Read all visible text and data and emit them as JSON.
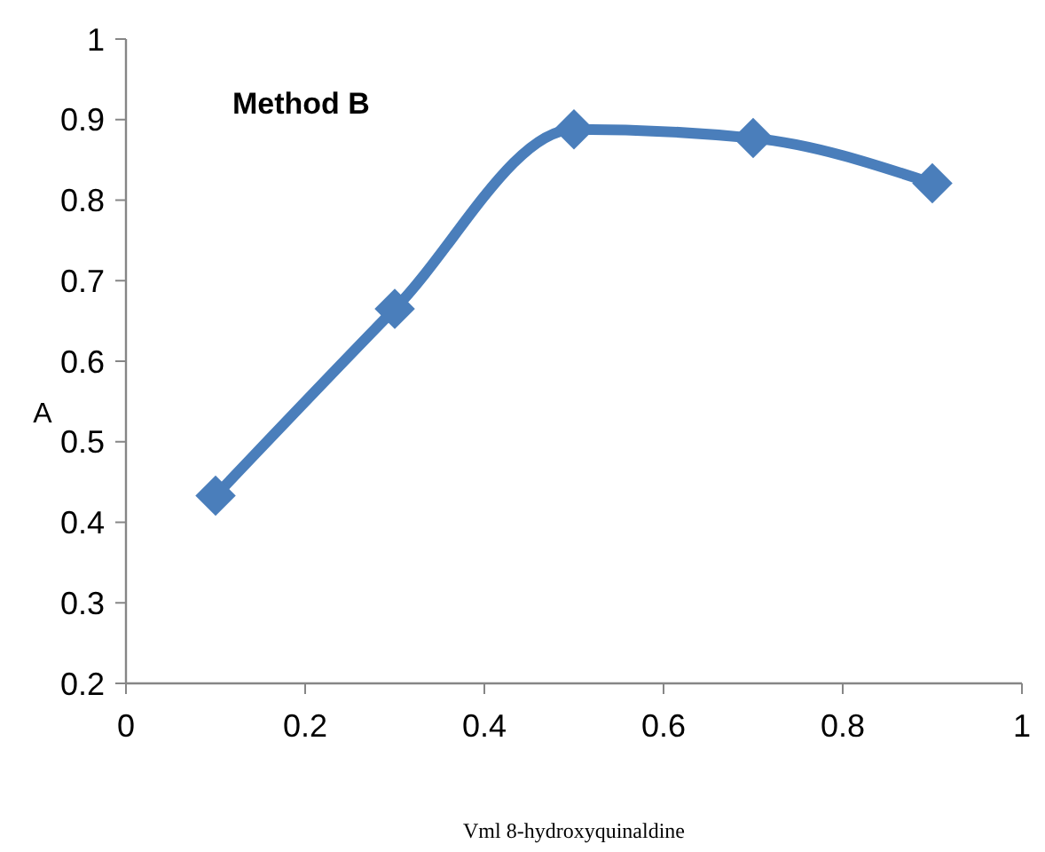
{
  "chart_data": {
    "type": "line",
    "xlabel": "Vml 8-hydroxyquinaldine",
    "ylabel": "A",
    "annotations": [
      "Method B"
    ],
    "x": [
      0.1,
      0.3,
      0.5,
      0.7,
      0.9
    ],
    "series": [
      {
        "color": "#4a7ebb",
        "values": [
          0.433,
          0.665,
          0.888,
          0.877,
          0.821
        ]
      }
    ],
    "xlim": [
      0,
      1
    ],
    "xticks": [
      0,
      0.2,
      0.4,
      0.6,
      0.8,
      1
    ],
    "ylim": [
      0.2,
      1
    ],
    "yticks": [
      0.2,
      0.3,
      0.4,
      0.5,
      0.6,
      0.7,
      0.8,
      0.9,
      1
    ],
    "marker": "diamond",
    "line_style": "solid",
    "grid": false
  }
}
